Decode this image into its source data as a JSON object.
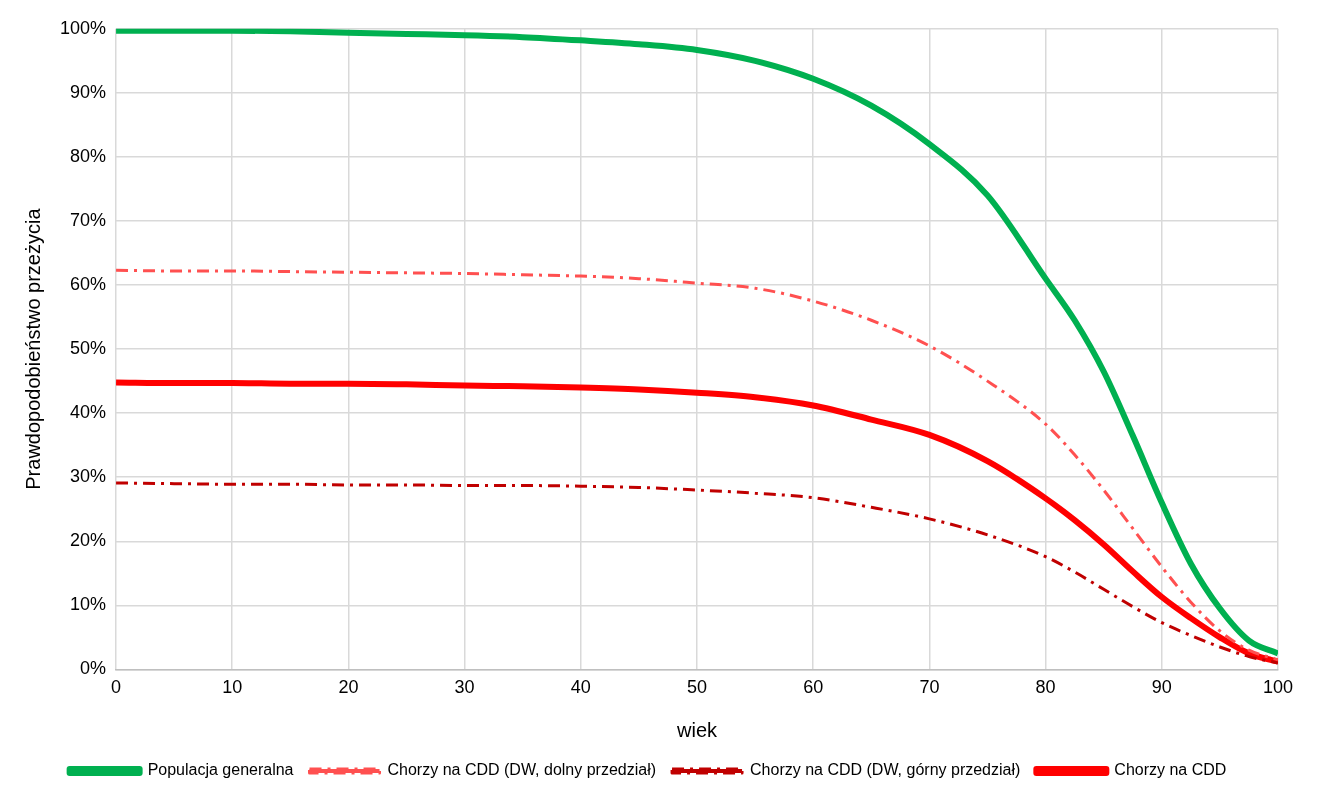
{
  "chart_data": {
    "type": "line",
    "xlabel": "wiek",
    "ylabel": "Prawdopodobieństwo przeżycia",
    "x": [
      0,
      5,
      10,
      15,
      20,
      25,
      30,
      35,
      40,
      45,
      50,
      55,
      60,
      65,
      70,
      75,
      80,
      82.5,
      85,
      87.5,
      90,
      92.5,
      95,
      97.5,
      100
    ],
    "series": [
      {
        "name": "Populacja generalna",
        "color": "#00b050",
        "line_style": "solid",
        "values": [
          99.7,
          99.7,
          99.7,
          99.6,
          99.4,
          99.2,
          99.0,
          98.7,
          98.2,
          97.6,
          96.7,
          95.0,
          92.2,
          88.0,
          82.0,
          74.0,
          61.0,
          54.5,
          46.5,
          36.5,
          26.0,
          16.5,
          9.5,
          4.5,
          2.5
        ]
      },
      {
        "name": "Chorzy na CDD (DW, dolny przedział)",
        "color": "#ff5050",
        "line_style": "dashed",
        "values": [
          62.3,
          62.2,
          62.2,
          62.1,
          62.0,
          61.9,
          61.8,
          61.6,
          61.4,
          61.0,
          60.3,
          59.5,
          57.5,
          54.5,
          50.5,
          45.0,
          38.3,
          33.5,
          28.0,
          22.0,
          16.0,
          10.5,
          6.0,
          3.0,
          1.5
        ]
      },
      {
        "name": "Chorzy na CDD (DW, górny przedział)",
        "color": "#c00000",
        "line_style": "dashed",
        "values": [
          29.1,
          29.0,
          28.9,
          28.9,
          28.8,
          28.8,
          28.7,
          28.7,
          28.6,
          28.4,
          28.0,
          27.5,
          26.8,
          25.3,
          23.5,
          21.0,
          17.6,
          15.2,
          12.5,
          9.8,
          7.3,
          5.3,
          3.5,
          2.0,
          1.0
        ]
      },
      {
        "name": "Chorzy na CDD",
        "color": "#ff0000",
        "line_style": "solid",
        "values": [
          44.8,
          44.7,
          44.7,
          44.6,
          44.6,
          44.5,
          44.3,
          44.2,
          44.0,
          43.7,
          43.2,
          42.5,
          41.2,
          39.0,
          36.6,
          32.5,
          26.7,
          23.3,
          19.5,
          15.3,
          11.3,
          8.0,
          5.0,
          2.5,
          1.2
        ]
      }
    ],
    "xlim": [
      0,
      100
    ],
    "xticks": [
      0,
      10,
      20,
      30,
      40,
      50,
      60,
      70,
      80,
      90,
      100
    ],
    "ylim": [
      0,
      100
    ],
    "yticks": [
      {
        "value": 0,
        "label": "0%"
      },
      {
        "value": 10,
        "label": "10%"
      },
      {
        "value": 20,
        "label": "20%"
      },
      {
        "value": 30,
        "label": "30%"
      },
      {
        "value": 40,
        "label": "40%"
      },
      {
        "value": 50,
        "label": "50%"
      },
      {
        "value": 60,
        "label": "60%"
      },
      {
        "value": 70,
        "label": "70%"
      },
      {
        "value": 80,
        "label": "80%"
      },
      {
        "value": 90,
        "label": "90%"
      },
      {
        "value": 100,
        "label": "100%"
      }
    ],
    "grid": true,
    "legend": "bottom",
    "marker": "none"
  }
}
